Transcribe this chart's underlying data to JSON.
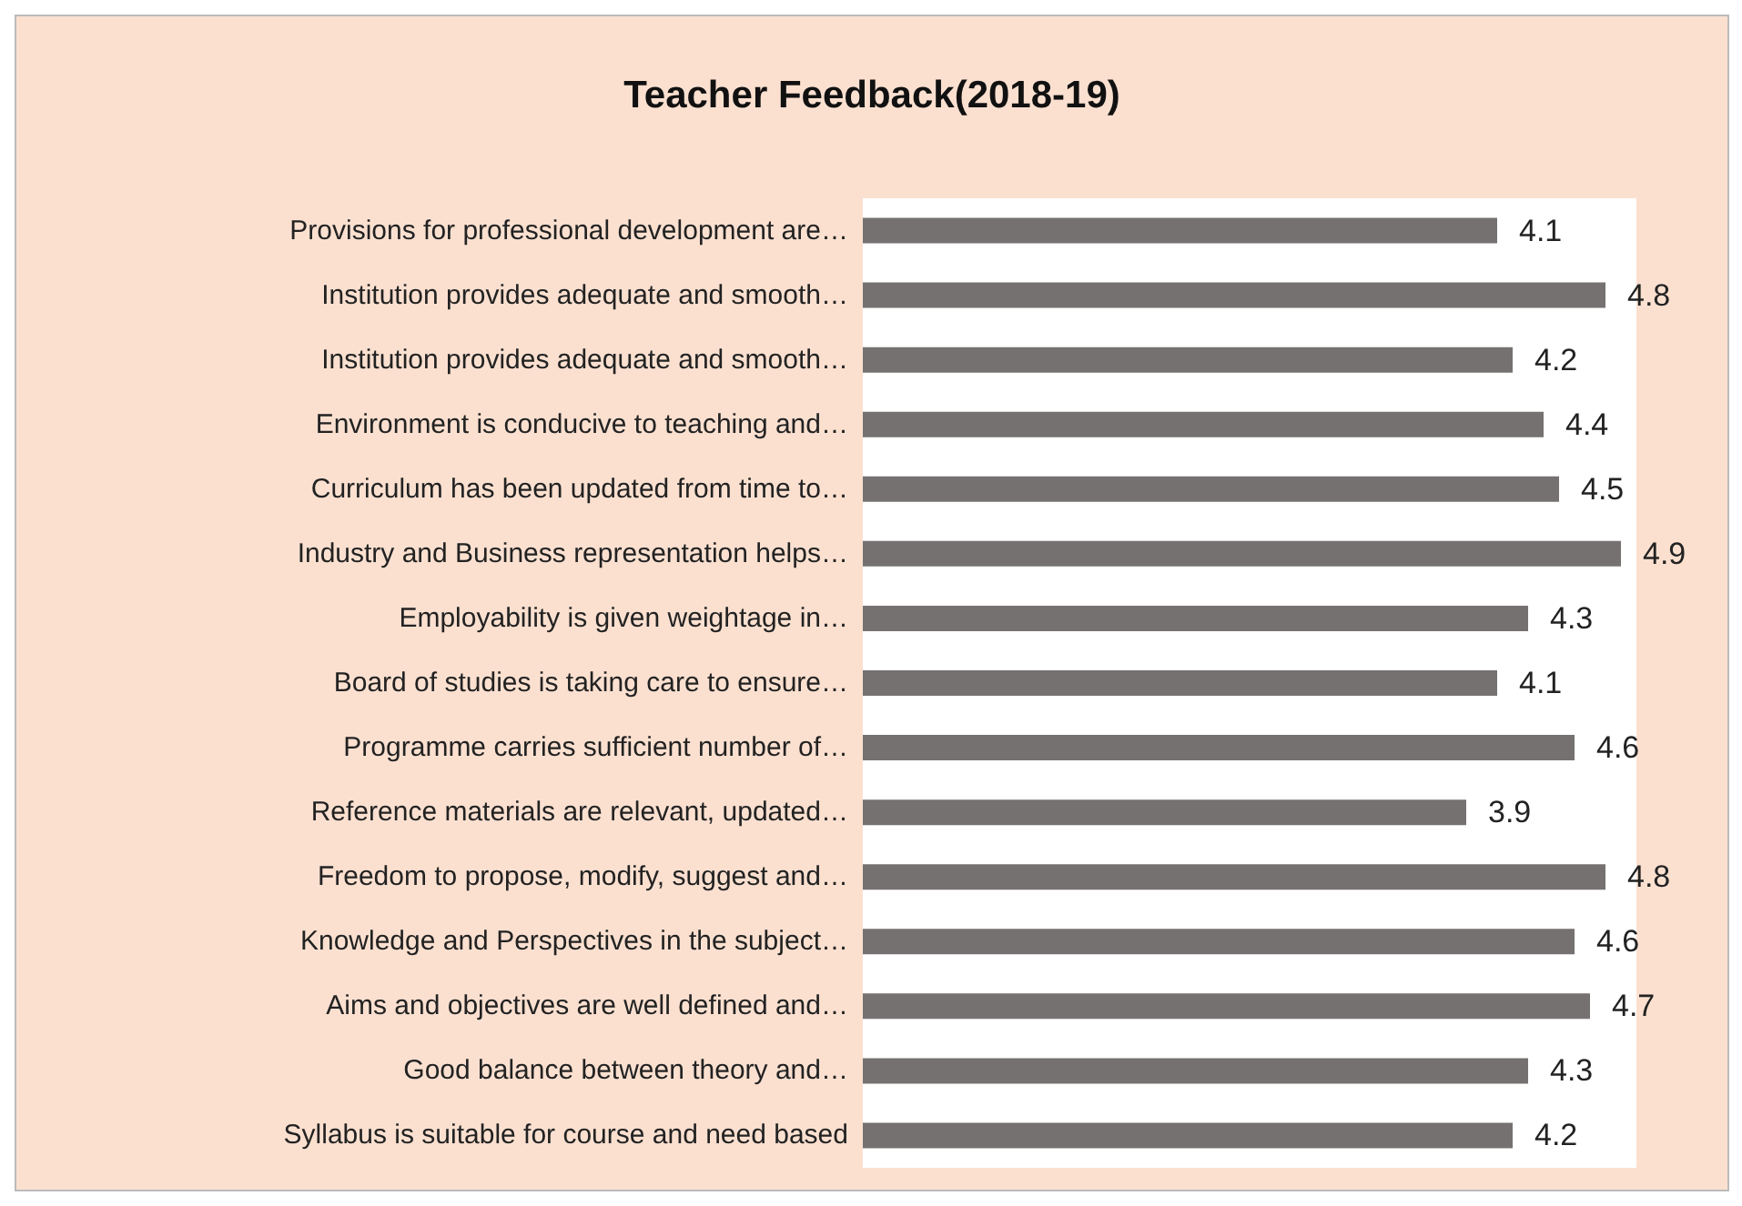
{
  "chart_data": {
    "type": "bar",
    "orientation": "horizontal",
    "title": "Teacher Feedback(2018-19)",
    "categories": [
      "Provisions for professional development are…",
      "Institution provides adequate and smooth…",
      "Institution provides adequate and smooth…",
      "Environment is conducive to teaching and…",
      "Curriculum has been updated from time to…",
      "Industry and Business representation helps…",
      "Employability is given weightage in…",
      "Board of studies is taking care to ensure…",
      "Programme carries sufficient number of…",
      "Reference materials are relevant, updated…",
      "Freedom to propose, modify, suggest and…",
      "Knowledge and Perspectives in the subject…",
      "Aims and objectives are well defined and…",
      "Good balance between theory and…",
      "Syllabus is suitable for course and need based"
    ],
    "values": [
      4.1,
      4.8,
      4.2,
      4.4,
      4.5,
      4.9,
      4.3,
      4.1,
      4.6,
      3.9,
      4.8,
      4.6,
      4.7,
      4.3,
      4.2
    ],
    "color": "#767171",
    "data_labels": true,
    "tick_labels": "y"
  }
}
